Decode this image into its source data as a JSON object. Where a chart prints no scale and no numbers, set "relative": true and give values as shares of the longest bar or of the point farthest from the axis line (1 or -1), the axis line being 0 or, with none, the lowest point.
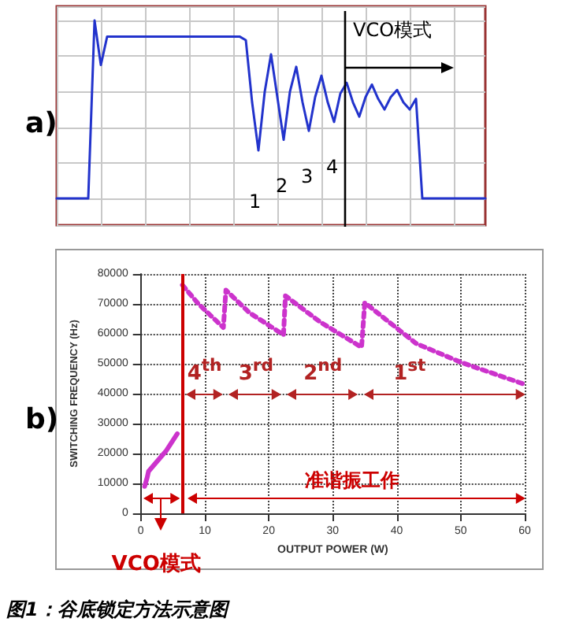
{
  "chart_data": [
    {
      "type": "line",
      "relative": true,
      "grid": true,
      "tick_labels": false,
      "marker": "none",
      "categories": [
        null,
        null,
        null,
        null,
        null,
        null,
        null,
        null,
        null,
        null,
        null,
        null,
        null,
        null,
        null,
        null,
        null,
        null,
        null,
        null,
        null,
        null,
        null,
        null,
        null,
        null,
        null,
        null,
        null,
        null,
        null,
        null,
        null,
        null,
        null,
        null,
        null,
        null,
        null,
        null,
        null,
        null,
        null,
        null,
        null,
        null,
        null,
        null,
        null,
        null,
        null,
        null,
        null,
        null,
        null,
        null,
        null,
        null,
        null,
        null,
        null,
        null,
        null,
        null,
        null,
        null,
        null,
        null,
        null
      ],
      "series": [
        {
          "color": "#2233cc",
          "values": [
            0,
            0,
            0,
            0,
            0,
            0,
            1.0,
            0.75,
            0.91,
            0.91,
            0.91,
            0.91,
            0.91,
            0.91,
            0.91,
            0.91,
            0.91,
            0.91,
            0.91,
            0.91,
            0.91,
            0.91,
            0.91,
            0.91,
            0.91,
            0.91,
            0.91,
            0.91,
            0.91,
            0.91,
            0.89,
            0.54,
            0.27,
            0.6,
            0.81,
            0.57,
            0.33,
            0.6,
            0.74,
            0.54,
            0.38,
            0.57,
            0.69,
            0.54,
            0.43,
            0.59,
            0.65,
            0.54,
            0.46,
            0.57,
            0.64,
            0.56,
            0.5,
            0.57,
            0.61,
            0.54,
            0.5,
            0.56,
            0,
            0,
            0,
            0,
            0,
            0,
            0,
            0,
            0,
            0,
            0
          ]
        }
      ],
      "annotations": [
        "a)",
        "1",
        "2",
        "3",
        "4",
        "VCO模式"
      ]
    },
    {
      "type": "line",
      "xlabel": "OUTPUT POWER (W)",
      "ylabel": "SWITCHING FREQUENCY (Hz)",
      "grid": true,
      "marker": "none",
      "xlim": [
        0,
        60
      ],
      "xticks": [
        0,
        10,
        20,
        30,
        40,
        50,
        60
      ],
      "ylim": [
        0,
        80000
      ],
      "yticks": [
        0,
        10000,
        20000,
        30000,
        40000,
        50000,
        60000,
        70000,
        80000
      ],
      "series": [
        {
          "color": "#cc33cc",
          "line_style": "solid",
          "x": [
            0.6,
            1,
            1.2,
            2.2,
            4,
            5.7
          ],
          "values": [
            9000,
            12000,
            14000,
            16500,
            21000,
            26600
          ]
        },
        {
          "color": "#cc33cc",
          "line_style": "dotted",
          "x": [
            6.5,
            9,
            12.9,
            13.3,
            17,
            22.3,
            22.6,
            28,
            34.5,
            35,
            43,
            50,
            60
          ],
          "values": [
            76300,
            70000,
            62100,
            74600,
            67000,
            59700,
            72700,
            64000,
            55500,
            70400,
            56800,
            50500,
            43100
          ]
        }
      ],
      "ref_lines": [
        {
          "axis": "x",
          "value": 6.5,
          "color": "#cc0000"
        }
      ],
      "annotations": [
        "b)",
        "4$^{th}$",
        "3$^{rd}$",
        "2$^{nd}$",
        "1$^{st}$",
        "VCO模式",
        "准谐振工作",
        "图1：谷底锁定方法示意图"
      ]
    }
  ]
}
